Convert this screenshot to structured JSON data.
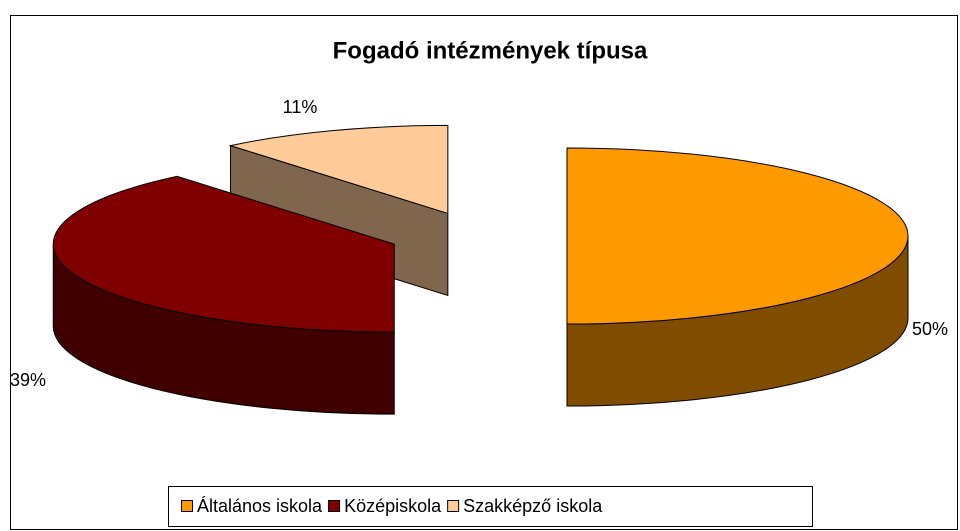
{
  "chart_data": {
    "type": "pie",
    "title": "Fogadó intézmények típusa",
    "categories": [
      "Általános iskola",
      "Középiskola",
      "Szakképző iskola"
    ],
    "values": [
      50,
      39,
      11
    ],
    "value_labels": [
      "50%",
      "39%",
      "11%"
    ],
    "colors": [
      "#ff9900",
      "#800000",
      "#ffcc99"
    ],
    "legend": "bottom"
  }
}
